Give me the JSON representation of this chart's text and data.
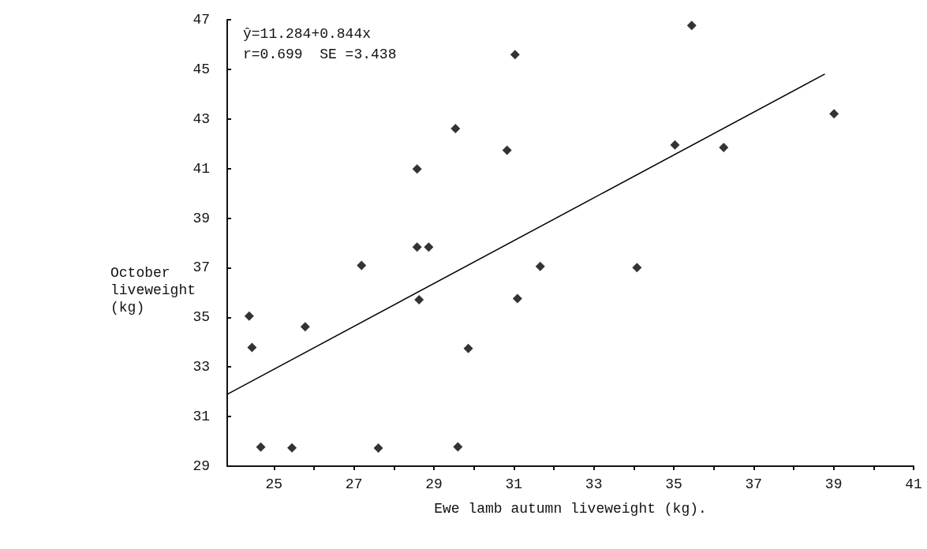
{
  "chart_data": {
    "type": "scatter",
    "xlabel": "Ewe lamb autumn liveweight (kg).",
    "ylabel": "October liveweight (kg)",
    "annotations": [
      "ŷ=11.284+0.844x",
      "r=0.699  SE =3.438"
    ],
    "series": [
      {
        "color": "#000000",
        "marker": "diamond",
        "x": [
          24.38,
          24.45,
          24.67,
          25.45,
          25.78,
          27.19,
          27.61,
          28.58,
          28.58,
          28.87,
          28.63,
          29.54,
          29.6,
          29.86,
          30.83,
          31.03,
          31.09,
          31.66,
          34.08,
          35.03,
          35.45,
          36.25,
          39.01
        ],
        "values": [
          35.05,
          33.79,
          29.77,
          29.74,
          34.62,
          37.09,
          29.73,
          40.98,
          37.83,
          37.83,
          35.71,
          42.61,
          29.78,
          33.75,
          41.74,
          45.59,
          35.76,
          37.05,
          37.01,
          41.95,
          46.77,
          41.85,
          43.21
        ]
      },
      {
        "type": "line",
        "color": "#000000",
        "marker": "none",
        "line_style": "solid",
        "x": [
          23.83,
          38.77
        ],
        "values": [
          31.9,
          44.8
        ]
      }
    ],
    "xlim": [
      23.83,
      41
    ],
    "xticks": [
      25,
      {
        "value": 26,
        "label": null
      },
      27,
      {
        "value": 28,
        "label": null
      },
      29,
      {
        "value": 30,
        "label": null
      },
      31,
      {
        "value": 32,
        "label": null
      },
      33,
      {
        "value": 34,
        "label": null
      },
      35,
      {
        "value": 36,
        "label": null
      },
      37,
      {
        "value": 38,
        "label": null
      },
      39,
      {
        "value": 40,
        "label": null
      },
      41
    ],
    "ylim": [
      29,
      47
    ],
    "yticks": [
      29,
      31,
      33,
      35,
      37,
      39,
      41,
      43,
      45,
      47
    ],
    "grid": false
  }
}
